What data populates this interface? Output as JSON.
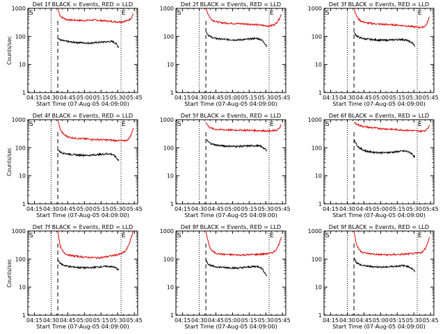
{
  "chart_data": [
    {
      "type": "line",
      "title": "Det 1f  BLACK = Events, RED = LLD",
      "xlabel": "Start Time (07-Aug-05 04:09:00)",
      "ylabel": "Counts/sec",
      "yscale": "log",
      "ylim": [
        1,
        1000
      ],
      "x_tick_labels": [
        "04:15",
        "04:30",
        "04:45",
        "05:00",
        "05:15",
        "05:30",
        "05:45"
      ],
      "y_tick_labels": [
        "1",
        "10",
        "100",
        "1000"
      ],
      "markers": {
        "S": "S",
        "E": "E",
        "dotted_start": "04:30",
        "dashed": "04:36",
        "dotted_end": "05:33"
      },
      "series": [
        {
          "color": "#e00000",
          "start": "04:36",
          "end": "05:44",
          "values": [
            1000,
            560,
            470,
            430,
            400,
            390,
            385,
            380,
            378,
            375,
            372,
            370,
            372,
            375,
            378,
            380,
            385,
            380,
            375,
            370,
            365,
            360,
            355,
            350,
            345,
            340,
            335,
            330,
            330,
            335,
            345,
            360,
            390,
            440,
            650
          ]
        },
        {
          "color": "#000000",
          "start": "04:36",
          "end": "05:31",
          "values": [
            85,
            75,
            70,
            68,
            65,
            63,
            62,
            61,
            60,
            60,
            59,
            58,
            58,
            59,
            60,
            61,
            62,
            63,
            64,
            65,
            66,
            64,
            55,
            40
          ]
        }
      ]
    },
    {
      "type": "line",
      "title": "Det 2f  BLACK = Events, RED = LLD",
      "xlabel": "Start Time (07-Aug-05 04:09:00)",
      "ylabel": "",
      "yscale": "log",
      "ylim": [
        1,
        1000
      ],
      "x_tick_labels": [
        "04:15",
        "04:30",
        "04:45",
        "05:00",
        "05:15",
        "05:30",
        "05:45"
      ],
      "y_tick_labels": [
        "1",
        "10",
        "100",
        "1000"
      ],
      "markers": {
        "S": "S",
        "E": "E",
        "dotted_start": "04:30",
        "dashed": "04:36",
        "dotted_end": "05:33"
      },
      "series": [
        {
          "color": "#e00000",
          "start": "04:36",
          "end": "05:44",
          "values": [
            1000,
            620,
            450,
            380,
            350,
            330,
            320,
            310,
            305,
            300,
            298,
            295,
            292,
            290,
            288,
            285,
            282,
            280,
            278,
            275,
            272,
            270,
            265,
            260,
            255,
            250,
            245,
            240,
            238,
            240,
            250,
            270,
            320,
            420,
            600
          ]
        },
        {
          "color": "#000000",
          "start": "04:36",
          "end": "05:31",
          "values": [
            150,
            110,
            95,
            88,
            84,
            82,
            80,
            79,
            78,
            77,
            76,
            75,
            75,
            76,
            77,
            78,
            80,
            82,
            84,
            85,
            82,
            75,
            60,
            45
          ]
        }
      ]
    },
    {
      "type": "line",
      "title": "Det 3f  BLACK = Events, RED = LLD",
      "xlabel": "Start Time (07-Aug-05 04:09:00)",
      "ylabel": "",
      "yscale": "log",
      "ylim": [
        1,
        1000
      ],
      "x_tick_labels": [
        "04:15",
        "04:30",
        "04:45",
        "05:00",
        "05:15",
        "05:30",
        "05:45"
      ],
      "y_tick_labels": [
        "1",
        "10",
        "100",
        "1000"
      ],
      "markers": {
        "S": "S",
        "E": "E",
        "dotted_start": "04:30",
        "dashed": "04:36",
        "dotted_end": "05:33"
      },
      "series": [
        {
          "color": "#e00000",
          "start": "04:36",
          "end": "05:44",
          "values": [
            1000,
            560,
            420,
            360,
            330,
            310,
            300,
            295,
            290,
            285,
            280,
            275,
            272,
            270,
            268,
            265,
            262,
            260,
            258,
            255,
            252,
            248,
            244,
            240,
            235,
            230,
            225,
            220,
            215,
            212,
            210,
            215,
            230,
            300,
            500
          ]
        },
        {
          "color": "#000000",
          "start": "04:36",
          "end": "05:31",
          "values": [
            140,
            105,
            92,
            86,
            82,
            80,
            78,
            77,
            76,
            75,
            74,
            73,
            73,
            74,
            75,
            76,
            77,
            78,
            78,
            76,
            72,
            66,
            58,
            45
          ]
        }
      ]
    },
    {
      "type": "line",
      "title": "Det 4f  BLACK = Events, RED = LLD",
      "xlabel": "Start Time (07-Aug-05 04:09:00)",
      "ylabel": "Counts/sec",
      "yscale": "log",
      "ylim": [
        1,
        1000
      ],
      "x_tick_labels": [
        "04:15",
        "04:30",
        "04:45",
        "05:00",
        "05:15",
        "05:30",
        "05:45"
      ],
      "y_tick_labels": [
        "1",
        "10",
        "100",
        "1000"
      ],
      "markers": {
        "S": "S",
        "E": "E",
        "dotted_start": "04:30",
        "dashed": "04:36",
        "dotted_end": "05:33"
      },
      "series": [
        {
          "color": "#e00000",
          "start": "04:36",
          "end": "05:44",
          "values": [
            1000,
            480,
            340,
            290,
            260,
            240,
            230,
            225,
            220,
            215,
            212,
            210,
            208,
            205,
            203,
            200,
            198,
            196,
            195,
            194,
            193,
            192,
            190,
            188,
            186,
            184,
            182,
            180,
            178,
            176,
            178,
            185,
            210,
            280,
            500
          ]
        },
        {
          "color": "#000000",
          "start": "04:36",
          "end": "05:31",
          "values": [
            85,
            70,
            65,
            62,
            60,
            58,
            57,
            56,
            55,
            55,
            54,
            54,
            54,
            55,
            56,
            57,
            58,
            59,
            60,
            61,
            60,
            55,
            45,
            35
          ]
        }
      ]
    },
    {
      "type": "line",
      "title": "Det 5f  BLACK = Events, RED = LLD",
      "xlabel": "Start Time (07-Aug-05 04:09:00)",
      "ylabel": "",
      "yscale": "log",
      "ylim": [
        1,
        1000
      ],
      "x_tick_labels": [
        "04:15",
        "04:30",
        "04:45",
        "05:00",
        "05:15",
        "05:30",
        "05:45"
      ],
      "y_tick_labels": [
        "1",
        "10",
        "100",
        "1000"
      ],
      "markers": {
        "S": "S",
        "E": "E",
        "dotted_start": "04:30",
        "dashed": "04:36",
        "dotted_end": "05:33"
      },
      "series": [
        {
          "color": "#e00000",
          "start": "04:36",
          "end": "05:44",
          "values": [
            800,
            600,
            520,
            480,
            460,
            450,
            445,
            440,
            438,
            435,
            432,
            430,
            428,
            427,
            426,
            425,
            424,
            423,
            422,
            420,
            418,
            416,
            414,
            412,
            410,
            408,
            405,
            402,
            400,
            398,
            400,
            410,
            430,
            480,
            650
          ]
        },
        {
          "color": "#000000",
          "start": "04:36",
          "end": "05:31",
          "values": [
            200,
            160,
            140,
            130,
            125,
            120,
            118,
            116,
            115,
            114,
            113,
            112,
            112,
            113,
            114,
            115,
            116,
            117,
            118,
            118,
            116,
            110,
            95,
            75
          ]
        }
      ]
    },
    {
      "type": "line",
      "title": "Det 6f  BLACK = Events, RED = LLD",
      "xlabel": "Start Time (07-Aug-05 04:09:00)",
      "ylabel": "",
      "yscale": "log",
      "ylim": [
        1,
        1000
      ],
      "x_tick_labels": [
        "04:15",
        "04:30",
        "04:45",
        "05:00",
        "05:15",
        "05:30",
        "05:45"
      ],
      "y_tick_labels": [
        "1",
        "10",
        "100",
        "1000"
      ],
      "markers": {
        "S": "S",
        "E": "E",
        "dotted_start": "04:30",
        "dashed": "04:36",
        "dotted_end": "05:33"
      },
      "series": [
        {
          "color": "#e00000",
          "start": "04:36",
          "end": "05:44",
          "values": [
            800,
            720,
            650,
            610,
            580,
            560,
            545,
            530,
            520,
            510,
            500,
            492,
            485,
            478,
            472,
            466,
            460,
            455,
            450,
            445,
            440,
            435,
            430,
            425,
            420,
            415,
            410,
            405,
            400,
            395,
            392,
            395,
            410,
            460,
            650
          ]
        },
        {
          "color": "#000000",
          "start": "04:36",
          "end": "05:31",
          "values": [
            200,
            130,
            100,
            88,
            80,
            75,
            72,
            70,
            69,
            68,
            67,
            67,
            67,
            68,
            69,
            70,
            72,
            74,
            75,
            76,
            74,
            68,
            60,
            45
          ]
        }
      ]
    },
    {
      "type": "line",
      "title": "Det 7f  BLACK = Events, RED = LLD",
      "xlabel": "Start Time (07-Aug-05 04:09:00)",
      "ylabel": "Counts/sec",
      "yscale": "log",
      "ylim": [
        1,
        1000
      ],
      "x_tick_labels": [
        "04:15",
        "04:30",
        "04:45",
        "05:00",
        "05:15",
        "05:30",
        "05:45"
      ],
      "y_tick_labels": [
        "1",
        "10",
        "100",
        "1000"
      ],
      "markers": {
        "S": "S",
        "E": "E",
        "dotted_start": "04:30",
        "dashed": "04:36",
        "dotted_end": "05:33"
      },
      "series": [
        {
          "color": "#e00000",
          "start": "04:36",
          "end": "05:44",
          "values": [
            1000,
            300,
            200,
            165,
            150,
            140,
            135,
            130,
            128,
            125,
            122,
            120,
            118,
            116,
            115,
            114,
            113,
            112,
            112,
            113,
            115,
            118,
            122,
            126,
            130,
            135,
            140,
            145,
            150,
            160,
            180,
            220,
            320,
            550,
            1000
          ]
        },
        {
          "color": "#000000",
          "start": "04:36",
          "end": "05:31",
          "values": [
            95,
            70,
            62,
            58,
            55,
            53,
            52,
            51,
            50,
            50,
            49,
            49,
            49,
            50,
            51,
            52,
            53,
            54,
            55,
            55,
            54,
            52,
            48,
            40
          ]
        }
      ]
    },
    {
      "type": "line",
      "title": "Det 8f  BLACK = Events, RED = LLD",
      "xlabel": "Start Time (07-Aug-05 04:09:00)",
      "ylabel": "",
      "yscale": "log",
      "ylim": [
        1,
        1000
      ],
      "x_tick_labels": [
        "04:15",
        "04:30",
        "04:45",
        "05:00",
        "05:15",
        "05:30",
        "05:45"
      ],
      "y_tick_labels": [
        "1",
        "10",
        "100",
        "1000"
      ],
      "markers": {
        "S": "S",
        "E": "E",
        "dotted_start": "04:30",
        "dashed": "04:36",
        "dotted_end": "05:33"
      },
      "series": [
        {
          "color": "#e00000",
          "start": "04:36",
          "end": "05:44",
          "values": [
            1000,
            420,
            240,
            190,
            170,
            160,
            155,
            150,
            148,
            146,
            145,
            144,
            143,
            142,
            141,
            140,
            140,
            141,
            142,
            143,
            144,
            145,
            146,
            147,
            148,
            150,
            152,
            155,
            158,
            162,
            170,
            190,
            240,
            350,
            600
          ]
        },
        {
          "color": "#000000",
          "start": "04:36",
          "end": "05:31",
          "values": [
            95,
            65,
            58,
            55,
            53,
            52,
            51,
            50,
            50,
            49,
            49,
            48,
            48,
            49,
            50,
            51,
            52,
            53,
            54,
            55,
            53,
            48,
            35,
            25
          ]
        }
      ]
    },
    {
      "type": "line",
      "title": "Det 9f  BLACK = Events, RED = LLD",
      "xlabel": "Start Time (07-Aug-05 04:09:00)",
      "ylabel": "",
      "yscale": "log",
      "ylim": [
        1,
        1000
      ],
      "x_tick_labels": [
        "04:15",
        "04:30",
        "04:45",
        "05:00",
        "05:15",
        "05:30",
        "05:45"
      ],
      "y_tick_labels": [
        "1",
        "10",
        "100",
        "1000"
      ],
      "markers": {
        "S": "S",
        "E": "E",
        "dotted_start": "04:30",
        "dashed": "04:36",
        "dotted_end": "05:33"
      },
      "series": [
        {
          "color": "#e00000",
          "start": "04:36",
          "end": "05:44",
          "values": [
            1000,
            360,
            240,
            195,
            175,
            165,
            160,
            156,
            153,
            150,
            148,
            146,
            145,
            144,
            143,
            142,
            142,
            143,
            144,
            145,
            146,
            147,
            148,
            150,
            152,
            154,
            156,
            158,
            160,
            164,
            170,
            185,
            230,
            340,
            600
          ]
        },
        {
          "color": "#000000",
          "start": "04:36",
          "end": "05:31",
          "values": [
            110,
            75,
            65,
            60,
            58,
            56,
            55,
            54,
            53,
            53,
            52,
            52,
            52,
            53,
            54,
            55,
            56,
            57,
            58,
            58,
            56,
            52,
            45,
            35
          ]
        }
      ]
    }
  ]
}
